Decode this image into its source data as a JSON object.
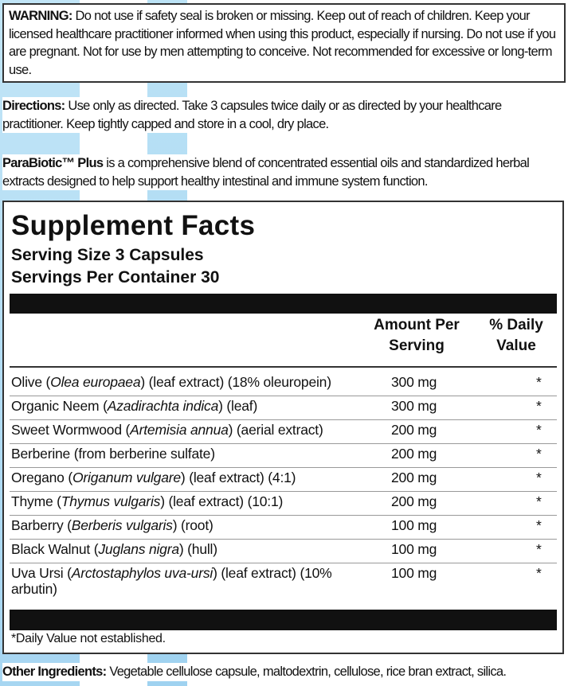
{
  "warning": {
    "label": "WARNING:",
    "text": "Do not use if safety seal is broken or missing. Keep out of reach of children. Keep your licensed healthcare practitioner informed when using this product, especially if nursing. Do not use if you are pregnant. Not for use by men attempting to conceive. Not recommended for excessive or long-term use."
  },
  "directions": {
    "label": "Directions:",
    "text": "Use only as directed. Take 3 capsules twice daily or as directed by your healthcare practitioner. Keep tightly capped and store in a cool, dry place."
  },
  "blurb": {
    "product": "ParaBiotic™ Plus",
    "text": "is a comprehensive blend of concentrated essential oils and standardized herbal extracts designed to help support healthy intestinal and immune system function."
  },
  "facts": {
    "title": "Supplement Facts",
    "serving_size": "Serving Size 3 Capsules",
    "servings_per_container": "Servings Per Container 30",
    "col_amount": "Amount Per Serving",
    "col_dv": "% Daily Value",
    "rows": [
      {
        "pre": "Olive (",
        "latin": "Olea europaea",
        "post": ") (leaf extract) (18% oleuropein)",
        "amount": "300 mg",
        "dv": "*"
      },
      {
        "pre": "Organic Neem (",
        "latin": "Azadirachta indica",
        "post": ") (leaf)",
        "amount": "300 mg",
        "dv": "*"
      },
      {
        "pre": "Sweet Wormwood (",
        "latin": "Artemisia annua",
        "post": ") (aerial extract)",
        "amount": "200 mg",
        "dv": "*"
      },
      {
        "pre": "Berberine (from berberine sulfate)",
        "latin": "",
        "post": "",
        "amount": "200 mg",
        "dv": "*"
      },
      {
        "pre": "Oregano (",
        "latin": "Origanum vulgare",
        "post": ") (leaf extract) (4:1)",
        "amount": "200 mg",
        "dv": "*"
      },
      {
        "pre": "Thyme (",
        "latin": "Thymus vulgaris",
        "post": ") (leaf extract) (10:1)",
        "amount": "200 mg",
        "dv": "*"
      },
      {
        "pre": "Barberry (",
        "latin": "Berberis vulgaris",
        "post": ") (root)",
        "amount": "100 mg",
        "dv": "*"
      },
      {
        "pre": "Black Walnut (",
        "latin": "Juglans nigra",
        "post": ") (hull)",
        "amount": "100 mg",
        "dv": "*"
      },
      {
        "pre": "Uva Ursi (",
        "latin": "Arctostaphylos uva-ursi",
        "post": ") (leaf extract) (10% arbutin)",
        "amount": "100 mg",
        "dv": "*"
      }
    ],
    "footnote": "*Daily Value not established."
  },
  "other": {
    "label": "Other Ingredients:",
    "text": "Vegetable cellulose capsule, maltodextrin, cellulose, rice bran extract, silica."
  },
  "colors": {
    "background_stripe": "#6fc0ea",
    "ink": "#111111"
  }
}
